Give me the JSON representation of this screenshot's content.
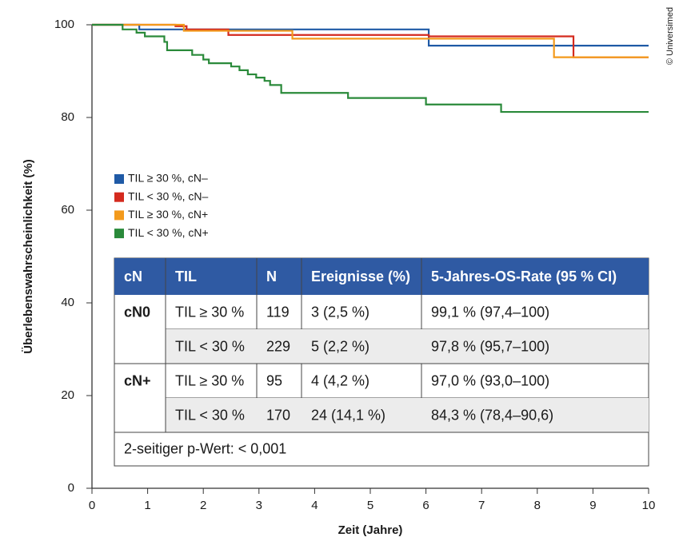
{
  "chart_data": {
    "type": "step",
    "y_label": "Überlebenswahrscheinlichkeit (%)",
    "x_label": "Zeit (Jahre)",
    "credit": "© Universimed",
    "xlim": [
      0,
      10
    ],
    "xticks": [
      0,
      1,
      2,
      3,
      4,
      5,
      6,
      7,
      8,
      9,
      10
    ],
    "ylim": [
      0,
      100
    ],
    "yticks": [
      0,
      20,
      40,
      60,
      80,
      100
    ],
    "grid": false,
    "legend": "left",
    "series": [
      {
        "name": "TIL ≥ 30 %, cN–",
        "color": "#1f5aa6",
        "x": [
          0,
          0.85,
          6.05,
          10
        ],
        "values": [
          100,
          99,
          95.5,
          95.5
        ]
      },
      {
        "name": "TIL < 30 %, cN–",
        "color": "#d42a1e",
        "x": [
          0,
          1.5,
          1.7,
          2.45,
          6.05,
          8.65,
          10
        ],
        "values": [
          100,
          99.7,
          99,
          97.8,
          97.5,
          93,
          93
        ]
      },
      {
        "name": "TIL ≥ 30 %, cN+",
        "color": "#f39a1c",
        "x": [
          0,
          1.65,
          3.6,
          8.3,
          10
        ],
        "values": [
          100,
          98.7,
          97,
          93,
          93
        ]
      },
      {
        "name": "TIL < 30 %, cN+",
        "color": "#2a8a3a",
        "x": [
          0,
          0.55,
          0.8,
          0.95,
          1.3,
          1.35,
          1.8,
          2.0,
          2.1,
          2.5,
          2.65,
          2.8,
          2.95,
          3.1,
          3.2,
          3.4,
          4.6,
          6.0,
          7.35,
          10
        ],
        "values": [
          100,
          99,
          98.3,
          97.5,
          96.3,
          94.5,
          93.5,
          92.5,
          91.7,
          91,
          90.2,
          89.3,
          88.6,
          87.9,
          87,
          85.3,
          84.2,
          82.8,
          81.2,
          81.2
        ]
      }
    ],
    "table": {
      "header": [
        "cN",
        "TIL",
        "N",
        "Ereignisse (%)",
        "5-Jahres-OS-Rate (95 % CI)"
      ],
      "header_color": "#2f5aa3",
      "groups": [
        {
          "label": "cN0",
          "rows": [
            [
              "TIL ≥ 30 %",
              "119",
              "3 (2,5 %)",
              "99,1 % (97,4–100)"
            ],
            [
              "TIL < 30 %",
              "229",
              "5 (2,2 %)",
              "97,8 % (95,7–100)"
            ]
          ]
        },
        {
          "label": "cN+",
          "rows": [
            [
              "TIL ≥ 30 %",
              "95",
              "4 (4,2 %)",
              "97,0 % (93,0–100)"
            ],
            [
              "TIL < 30 %",
              "170",
              "24 (14,1 %)",
              "84,3 % (78,4–90,6)"
            ]
          ]
        }
      ],
      "footer": "2-seitiger p-Wert: < 0,001"
    }
  }
}
